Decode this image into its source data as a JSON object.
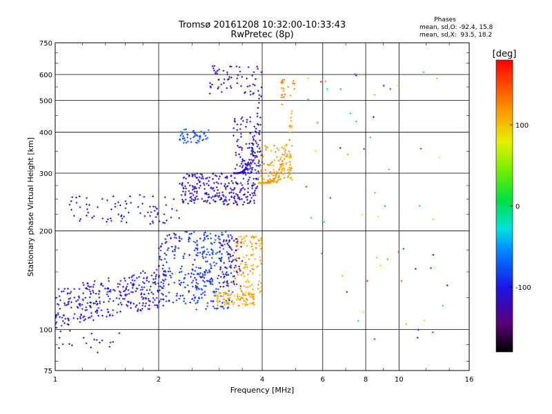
{
  "chart_data": {
    "type": "scatter",
    "title": "Tromsø 20161208 10:32:00-10:33:43",
    "subtitle": "RwPretec (8p)",
    "stats": {
      "heading": "Phases",
      "line1": "mean, sd,O: -92.4, 15.8",
      "line2": "mean, sd,X:  93.5, 18.2"
    },
    "xlabel": "Frequency [MHz]",
    "ylabel": "Stationary phase Virtual Height [km]",
    "x_scale": "log",
    "y_scale": "log",
    "xlim": [
      1,
      16
    ],
    "ylim": [
      75,
      750
    ],
    "grid": true,
    "x_ticks": [
      {
        "v": 1,
        "label": "1"
      },
      {
        "v": 2,
        "label": "2"
      },
      {
        "v": 4,
        "label": "4"
      },
      {
        "v": 6,
        "label": "6"
      },
      {
        "v": 8,
        "label": "8"
      },
      {
        "v": 10,
        "label": "10"
      },
      {
        "v": 16,
        "label": "16"
      }
    ],
    "x_grid": [
      2,
      4,
      6,
      8,
      10
    ],
    "y_ticks": [
      {
        "v": 75,
        "label": "75"
      },
      {
        "v": 100,
        "label": "100"
      },
      {
        "v": 200,
        "label": "200"
      },
      {
        "v": 300,
        "label": "300"
      },
      {
        "v": 400,
        "label": "400"
      },
      {
        "v": 500,
        "label": "500"
      },
      {
        "v": 600,
        "label": "600"
      },
      {
        "v": 750,
        "label": "750"
      }
    ],
    "y_grid": [
      100,
      200,
      300,
      400,
      500,
      600
    ],
    "colorbar": {
      "label": "[deg]",
      "range": [
        -180,
        180
      ],
      "ticks": [
        {
          "v": 100,
          "label": "100"
        },
        {
          "v": 0,
          "label": "0"
        },
        {
          "v": -100,
          "label": "-100"
        }
      ]
    },
    "series": [
      {
        "color_by": "phase_deg",
        "clusters": [
          {
            "x": [
              1.0,
              2.1
            ],
            "y": [
              110,
              145
            ],
            "phase": -105,
            "n": 320,
            "shape": "band_rising"
          },
          {
            "x": [
              1.0,
              1.6
            ],
            "y": [
              85,
              100
            ],
            "phase": -112,
            "n": 20
          },
          {
            "x": [
              2.0,
              2.9
            ],
            "y": [
              120,
              200
            ],
            "phase": -95,
            "n": 180
          },
          {
            "x": [
              2.5,
              3.3
            ],
            "y": [
              115,
              200
            ],
            "phase": -80,
            "n": 160
          },
          {
            "x": [
              3.0,
              3.5
            ],
            "y": [
              135,
              190
            ],
            "phase": -130,
            "n": 70
          },
          {
            "x": [
              2.9,
              3.8
            ],
            "y": [
              118,
              130
            ],
            "phase": 110,
            "n": 90
          },
          {
            "x": [
              3.3,
              4.0
            ],
            "y": [
              125,
              195
            ],
            "phase": 115,
            "n": 110
          },
          {
            "x": [
              1.1,
              2.3
            ],
            "y": [
              210,
              258
            ],
            "phase": -110,
            "n": 80,
            "shape": "band_flat"
          },
          {
            "x": [
              2.3,
              3.9
            ],
            "y": [
              240,
              300
            ],
            "phase": -115,
            "n": 250
          },
          {
            "x": [
              3.3,
              4.0
            ],
            "y": [
              300,
              660
            ],
            "phase": -110,
            "n": 200,
            "shape": "cusp_O"
          },
          {
            "x": [
              2.8,
              3.9
            ],
            "y": [
              520,
              640
            ],
            "phase": -115,
            "n": 60
          },
          {
            "x": [
              2.3,
              2.8
            ],
            "y": [
              370,
              410
            ],
            "phase": -80,
            "n": 50
          },
          {
            "x": [
              3.9,
              4.9
            ],
            "y": [
              280,
              480
            ],
            "phase": 115,
            "n": 240,
            "shape": "cusp_X"
          },
          {
            "x": [
              4.5,
              5.0
            ],
            "y": [
              480,
              580
            ],
            "phase": 130,
            "n": 20
          },
          {
            "x": [
              5.3,
              14.0
            ],
            "y": [
              90,
              620
            ],
            "phase": 40,
            "n": 60,
            "shape": "scatter_sparse"
          }
        ]
      }
    ]
  }
}
